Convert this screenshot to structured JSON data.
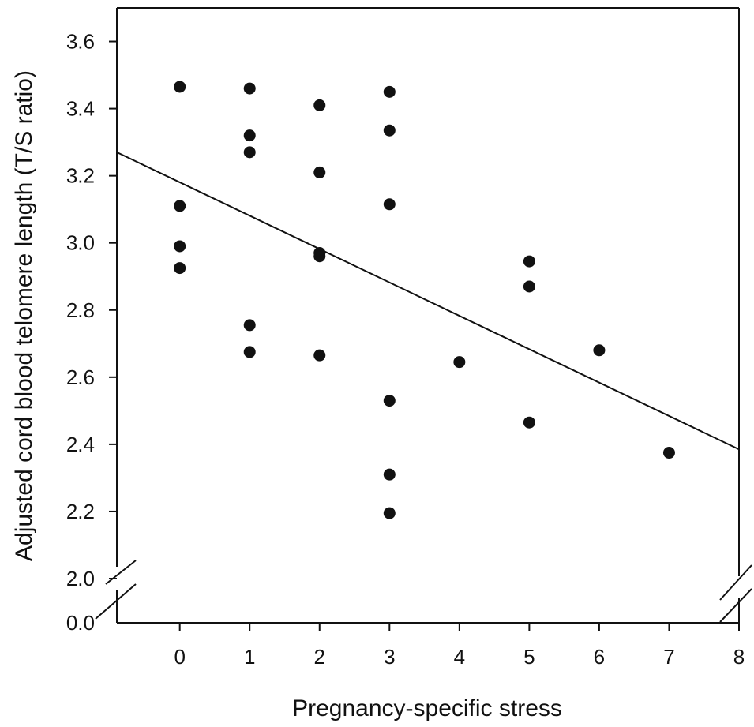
{
  "chart_data": {
    "type": "scatter",
    "title": "",
    "xlabel": "Pregnancy-specific stress",
    "ylabel": "Adjusted cord blood telomere length (T/S ratio)",
    "xlim": [
      -0.9,
      8
    ],
    "ylim": [
      2.0,
      3.7
    ],
    "x_ticks": [
      0,
      1,
      2,
      3,
      4,
      5,
      6,
      7,
      8
    ],
    "y_ticks": [
      2.0,
      2.2,
      2.4,
      2.6,
      2.8,
      3.0,
      3.2,
      3.4,
      3.6
    ],
    "y_tick_labels": [
      "0.0",
      "2.0",
      "2.2",
      "2.4",
      "2.6",
      "2.8",
      "3.0",
      "3.2",
      "3.4",
      "3.6"
    ],
    "y_axis_break": true,
    "grid": false,
    "series": [
      {
        "points": [
          {
            "x": 0,
            "y": 3.465
          },
          {
            "x": 0,
            "y": 3.11
          },
          {
            "x": 0,
            "y": 2.99
          },
          {
            "x": 0,
            "y": 2.925
          },
          {
            "x": 1,
            "y": 3.46
          },
          {
            "x": 1,
            "y": 3.32
          },
          {
            "x": 1,
            "y": 3.27
          },
          {
            "x": 1,
            "y": 2.755
          },
          {
            "x": 1,
            "y": 2.675
          },
          {
            "x": 2,
            "y": 3.41
          },
          {
            "x": 2,
            "y": 3.21
          },
          {
            "x": 2,
            "y": 2.97
          },
          {
            "x": 2,
            "y": 2.96
          },
          {
            "x": 2,
            "y": 2.665
          },
          {
            "x": 3,
            "y": 3.45
          },
          {
            "x": 3,
            "y": 3.335
          },
          {
            "x": 3,
            "y": 3.115
          },
          {
            "x": 3,
            "y": 2.53
          },
          {
            "x": 3,
            "y": 2.31
          },
          {
            "x": 3,
            "y": 2.195
          },
          {
            "x": 4,
            "y": 2.645
          },
          {
            "x": 5,
            "y": 2.945
          },
          {
            "x": 5,
            "y": 2.87
          },
          {
            "x": 5,
            "y": 2.465
          },
          {
            "x": 6,
            "y": 2.68
          },
          {
            "x": 7,
            "y": 2.375
          }
        ]
      }
    ],
    "trendline": {
      "x": [
        -0.9,
        8
      ],
      "y": [
        3.27,
        2.385
      ]
    }
  }
}
